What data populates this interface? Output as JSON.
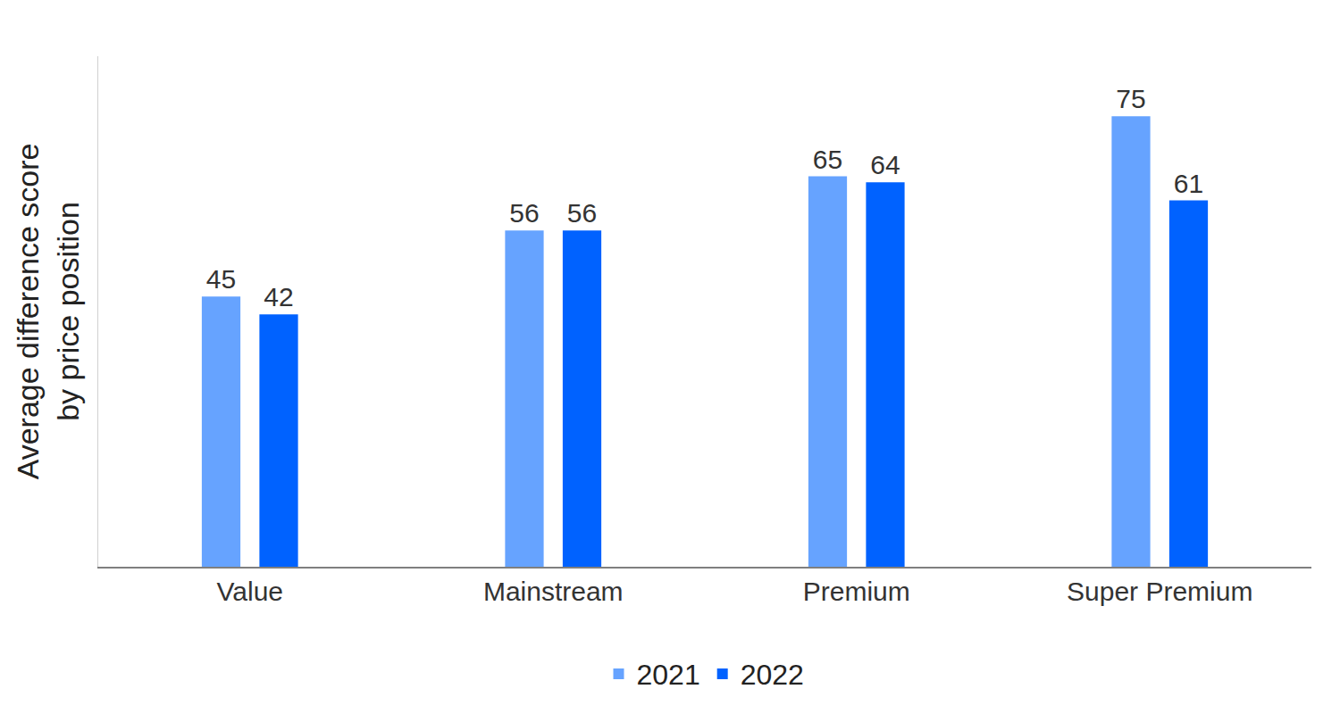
{
  "chart_data": {
    "type": "bar",
    "categories": [
      "Value",
      "Mainstream",
      "Premium",
      "Super Premium"
    ],
    "series": [
      {
        "name": "2021",
        "color": "#66a3ff",
        "values": [
          45,
          56,
          65,
          75
        ]
      },
      {
        "name": "2022",
        "color": "#0062ff",
        "values": [
          42,
          56,
          64,
          61
        ]
      }
    ],
    "y_label": "Average difference score\nby price position",
    "ylim": [
      0,
      85
    ],
    "tick_labels": "x",
    "grid": false,
    "legend": "bottom",
    "data_labels": true
  }
}
